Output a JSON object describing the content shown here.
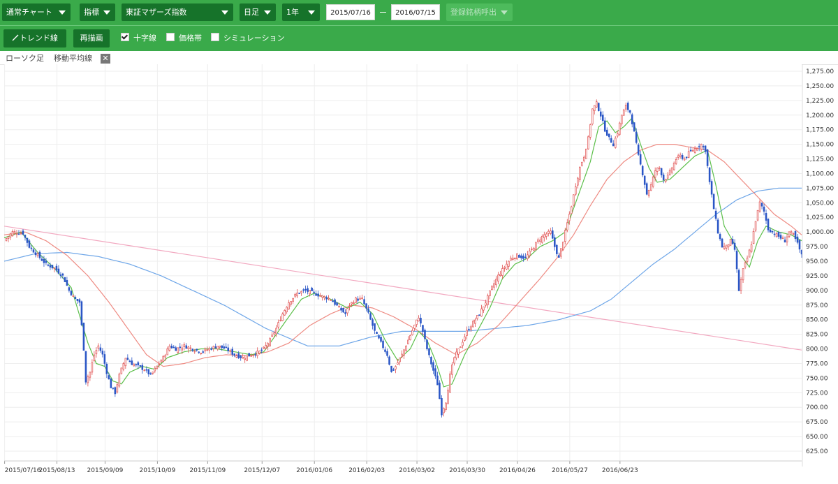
{
  "toolbar": {
    "chart_type": "通常チャート",
    "indicator": "指標",
    "index_name": "東証マザーズ指数",
    "period": "日足",
    "span": "1年",
    "date_from": "2015/07/16",
    "date_to": "2016/07/15",
    "register": "登録銘柄呼出"
  },
  "toolbar2": {
    "trend_label": "トレンド線",
    "redraw_label": "再描画",
    "crosshair_label": "十字線",
    "crosshair_checked": true,
    "price_band_label": "価格帯",
    "price_band_checked": false,
    "simulation_label": "シミュレーション",
    "simulation_checked": false
  },
  "legend": {
    "candle": "ローソク足",
    "ma": "移動平均線"
  },
  "colors": {
    "toolbar_green": "#3aaa4a",
    "dropdown_green": "#16732a",
    "candle_up": "#e05050",
    "candle_down": "#2a56c6",
    "ma_short": "#5cbf4a",
    "ma_mid": "#ee8a82",
    "ma_long": "#6ea6e8",
    "trend_line": "#f2a8c0"
  },
  "chart_data": {
    "type": "candlestick",
    "ylim": [
      625,
      1275
    ],
    "yticks": [
      "1,275.00",
      "1,250.00",
      "1,225.00",
      "1,200.00",
      "1,175.00",
      "1,150.00",
      "1,125.00",
      "1,100.00",
      "1,075.00",
      "1,050.00",
      "1,025.00",
      "1,000.00",
      "975.00",
      "950.00",
      "925.00",
      "900.00",
      "875.00",
      "850.00",
      "825.00",
      "800.00",
      "775.00",
      "750.00",
      "725.00",
      "700.00",
      "675.00",
      "650.00",
      "625.00"
    ],
    "xticks": [
      "2015/07/16",
      "2015/08/13",
      "2015/09/09",
      "2015/10/09",
      "2015/11/09",
      "2015/12/07",
      "2016/01/06",
      "2016/02/03",
      "2016/03/02",
      "2016/03/30",
      "2016/04/26",
      "2016/05/27",
      "2016/06/23"
    ],
    "close_path": [
      [
        0,
        985
      ],
      [
        4,
        1000
      ],
      [
        9,
        998
      ],
      [
        12,
        975
      ],
      [
        16,
        960
      ],
      [
        20,
        945
      ],
      [
        24,
        938
      ],
      [
        28,
        925
      ],
      [
        31,
        900
      ],
      [
        34,
        885
      ],
      [
        36,
        880
      ],
      [
        38,
        800
      ],
      [
        39,
        745
      ],
      [
        41,
        760
      ],
      [
        43,
        790
      ],
      [
        45,
        805
      ],
      [
        47,
        790
      ],
      [
        49,
        760
      ],
      [
        51,
        735
      ],
      [
        53,
        725
      ],
      [
        55,
        755
      ],
      [
        58,
        785
      ],
      [
        61,
        775
      ],
      [
        64,
        770
      ],
      [
        67,
        765
      ],
      [
        70,
        755
      ],
      [
        73,
        770
      ],
      [
        76,
        785
      ],
      [
        79,
        805
      ],
      [
        82,
        800
      ],
      [
        86,
        805
      ],
      [
        90,
        800
      ],
      [
        94,
        795
      ],
      [
        98,
        800
      ],
      [
        102,
        805
      ],
      [
        106,
        800
      ],
      [
        110,
        790
      ],
      [
        114,
        785
      ],
      [
        118,
        790
      ],
      [
        122,
        795
      ],
      [
        124,
        800
      ],
      [
        127,
        815
      ],
      [
        130,
        835
      ],
      [
        133,
        860
      ],
      [
        136,
        880
      ],
      [
        140,
        895
      ],
      [
        144,
        900
      ],
      [
        148,
        895
      ],
      [
        152,
        890
      ],
      [
        156,
        885
      ],
      [
        160,
        870
      ],
      [
        163,
        860
      ],
      [
        165,
        875
      ],
      [
        168,
        885
      ],
      [
        171,
        885
      ],
      [
        174,
        860
      ],
      [
        177,
        830
      ],
      [
        180,
        810
      ],
      [
        183,
        790
      ],
      [
        185,
        760
      ],
      [
        187,
        770
      ],
      [
        190,
        790
      ],
      [
        193,
        815
      ],
      [
        196,
        840
      ],
      [
        198,
        855
      ],
      [
        200,
        830
      ],
      [
        202,
        800
      ],
      [
        204,
        775
      ],
      [
        207,
        740
      ],
      [
        209,
        690
      ],
      [
        211,
        710
      ],
      [
        213,
        755
      ],
      [
        215,
        785
      ],
      [
        218,
        805
      ],
      [
        221,
        830
      ],
      [
        224,
        845
      ],
      [
        227,
        860
      ],
      [
        230,
        880
      ],
      [
        233,
        905
      ],
      [
        236,
        925
      ],
      [
        239,
        940
      ],
      [
        242,
        955
      ],
      [
        245,
        960
      ],
      [
        249,
        955
      ],
      [
        252,
        970
      ],
      [
        255,
        985
      ],
      [
        258,
        995
      ],
      [
        261,
        1000
      ],
      [
        263,
        975
      ],
      [
        265,
        955
      ],
      [
        267,
        985
      ],
      [
        269,
        1015
      ],
      [
        271,
        1045
      ],
      [
        273,
        1080
      ],
      [
        275,
        1110
      ],
      [
        277,
        1130
      ],
      [
        279,
        1160
      ],
      [
        281,
        1210
      ],
      [
        283,
        1220
      ],
      [
        285,
        1200
      ],
      [
        287,
        1175
      ],
      [
        289,
        1160
      ],
      [
        291,
        1150
      ],
      [
        293,
        1170
      ],
      [
        295,
        1200
      ],
      [
        297,
        1215
      ],
      [
        299,
        1205
      ],
      [
        301,
        1170
      ],
      [
        303,
        1130
      ],
      [
        305,
        1100
      ],
      [
        307,
        1065
      ],
      [
        309,
        1080
      ],
      [
        311,
        1105
      ],
      [
        313,
        1110
      ],
      [
        315,
        1090
      ],
      [
        317,
        1095
      ],
      [
        319,
        1110
      ],
      [
        321,
        1125
      ],
      [
        323,
        1130
      ],
      [
        325,
        1125
      ],
      [
        327,
        1135
      ],
      [
        329,
        1140
      ],
      [
        331,
        1145
      ],
      [
        333,
        1150
      ],
      [
        335,
        1140
      ],
      [
        337,
        1085
      ],
      [
        339,
        1040
      ],
      [
        341,
        1000
      ],
      [
        343,
        975
      ],
      [
        345,
        975
      ],
      [
        347,
        985
      ],
      [
        349,
        970
      ],
      [
        351,
        900
      ],
      [
        353,
        935
      ],
      [
        355,
        955
      ],
      [
        357,
        980
      ],
      [
        359,
        1020
      ],
      [
        361,
        1050
      ],
      [
        363,
        1035
      ],
      [
        365,
        1005
      ],
      [
        367,
        1000
      ],
      [
        369,
        995
      ],
      [
        371,
        990
      ],
      [
        373,
        985
      ],
      [
        375,
        1000
      ],
      [
        377,
        995
      ],
      [
        379,
        980
      ],
      [
        381,
        960
      ]
    ],
    "ma_short": [
      [
        0,
        990
      ],
      [
        8,
        1000
      ],
      [
        16,
        965
      ],
      [
        24,
        938
      ],
      [
        32,
        905
      ],
      [
        40,
        810
      ],
      [
        44,
        775
      ],
      [
        48,
        770
      ],
      [
        52,
        745
      ],
      [
        56,
        740
      ],
      [
        60,
        760
      ],
      [
        66,
        770
      ],
      [
        72,
        765
      ],
      [
        78,
        785
      ],
      [
        86,
        795
      ],
      [
        94,
        800
      ],
      [
        102,
        800
      ],
      [
        110,
        795
      ],
      [
        118,
        790
      ],
      [
        124,
        795
      ],
      [
        130,
        825
      ],
      [
        136,
        855
      ],
      [
        142,
        885
      ],
      [
        148,
        895
      ],
      [
        156,
        885
      ],
      [
        164,
        870
      ],
      [
        170,
        880
      ],
      [
        176,
        860
      ],
      [
        182,
        815
      ],
      [
        188,
        780
      ],
      [
        194,
        800
      ],
      [
        198,
        830
      ],
      [
        202,
        815
      ],
      [
        206,
        780
      ],
      [
        210,
        735
      ],
      [
        214,
        740
      ],
      [
        220,
        790
      ],
      [
        226,
        830
      ],
      [
        232,
        870
      ],
      [
        238,
        920
      ],
      [
        244,
        945
      ],
      [
        250,
        955
      ],
      [
        256,
        975
      ],
      [
        262,
        985
      ],
      [
        268,
        1000
      ],
      [
        272,
        1040
      ],
      [
        276,
        1080
      ],
      [
        280,
        1120
      ],
      [
        284,
        1180
      ],
      [
        288,
        1190
      ],
      [
        292,
        1170
      ],
      [
        296,
        1180
      ],
      [
        300,
        1195
      ],
      [
        304,
        1150
      ],
      [
        308,
        1110
      ],
      [
        312,
        1085
      ],
      [
        318,
        1090
      ],
      [
        324,
        1110
      ],
      [
        330,
        1130
      ],
      [
        336,
        1140
      ],
      [
        340,
        1080
      ],
      [
        344,
        1010
      ],
      [
        348,
        985
      ],
      [
        352,
        960
      ],
      [
        356,
        940
      ],
      [
        360,
        985
      ],
      [
        364,
        1010
      ],
      [
        370,
        1000
      ],
      [
        376,
        995
      ],
      [
        381,
        985
      ]
    ],
    "ma_mid": [
      [
        0,
        995
      ],
      [
        10,
        1000
      ],
      [
        20,
        985
      ],
      [
        30,
        960
      ],
      [
        40,
        925
      ],
      [
        50,
        880
      ],
      [
        60,
        830
      ],
      [
        68,
        790
      ],
      [
        76,
        770
      ],
      [
        86,
        775
      ],
      [
        96,
        785
      ],
      [
        106,
        790
      ],
      [
        116,
        788
      ],
      [
        126,
        795
      ],
      [
        136,
        810
      ],
      [
        146,
        840
      ],
      [
        156,
        860
      ],
      [
        166,
        875
      ],
      [
        176,
        870
      ],
      [
        186,
        855
      ],
      [
        196,
        835
      ],
      [
        206,
        810
      ],
      [
        216,
        790
      ],
      [
        226,
        810
      ],
      [
        236,
        840
      ],
      [
        246,
        880
      ],
      [
        256,
        920
      ],
      [
        264,
        955
      ],
      [
        272,
        995
      ],
      [
        280,
        1045
      ],
      [
        288,
        1090
      ],
      [
        296,
        1120
      ],
      [
        304,
        1140
      ],
      [
        312,
        1150
      ],
      [
        320,
        1150
      ],
      [
        328,
        1145
      ],
      [
        336,
        1140
      ],
      [
        344,
        1120
      ],
      [
        352,
        1090
      ],
      [
        360,
        1060
      ],
      [
        368,
        1030
      ],
      [
        376,
        1010
      ],
      [
        381,
        995
      ]
    ],
    "ma_long": [
      [
        0,
        950
      ],
      [
        15,
        963
      ],
      [
        30,
        965
      ],
      [
        45,
        958
      ],
      [
        60,
        945
      ],
      [
        75,
        925
      ],
      [
        90,
        900
      ],
      [
        105,
        875
      ],
      [
        115,
        855
      ],
      [
        125,
        835
      ],
      [
        135,
        820
      ],
      [
        145,
        805
      ],
      [
        160,
        805
      ],
      [
        175,
        820
      ],
      [
        190,
        830
      ],
      [
        205,
        830
      ],
      [
        220,
        830
      ],
      [
        235,
        835
      ],
      [
        250,
        840
      ],
      [
        265,
        850
      ],
      [
        280,
        865
      ],
      [
        290,
        885
      ],
      [
        300,
        915
      ],
      [
        310,
        945
      ],
      [
        320,
        970
      ],
      [
        330,
        1000
      ],
      [
        340,
        1030
      ],
      [
        350,
        1055
      ],
      [
        360,
        1070
      ],
      [
        370,
        1075
      ],
      [
        381,
        1075
      ]
    ],
    "trend_line": [
      [
        0,
        1010
      ],
      [
        381,
        798
      ]
    ]
  }
}
